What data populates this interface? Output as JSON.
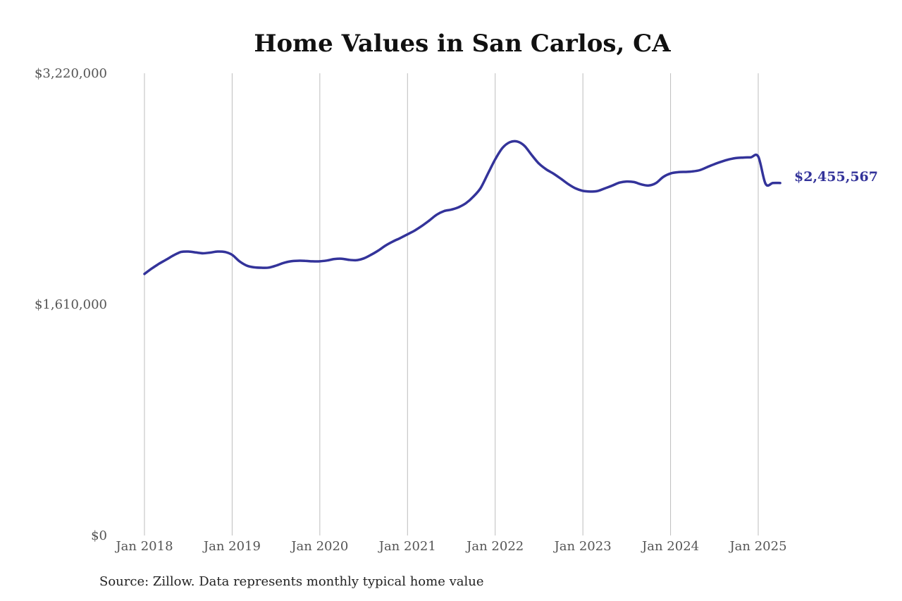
{
  "chart_data": {
    "type": "line",
    "title": "Home Values in San Carlos, CA",
    "xlabel": "",
    "ylabel": "",
    "ylim": [
      0,
      3220000
    ],
    "y_tick_values": [
      0,
      1610000,
      3220000
    ],
    "y_tick_labels": [
      "$0",
      "$1,610,000",
      "$3,220,000"
    ],
    "x_tick_values": [
      "2018-01",
      "2019-01",
      "2020-01",
      "2021-01",
      "2022-01",
      "2023-01",
      "2024-01",
      "2025-01"
    ],
    "x_tick_labels": [
      "Jan 2018",
      "Jan 2019",
      "Jan 2020",
      "Jan 2021",
      "Jan 2022",
      "Jan 2023",
      "Jan 2024",
      "Jan 2025"
    ],
    "grid": "vertical",
    "line_color": "#33339a",
    "series": [
      {
        "x": [
          "2018-01",
          "2018-02",
          "2018-03",
          "2018-04",
          "2018-05",
          "2018-06",
          "2018-07",
          "2018-08",
          "2018-09",
          "2018-10",
          "2018-11",
          "2018-12",
          "2019-01",
          "2019-02",
          "2019-03",
          "2019-04",
          "2019-05",
          "2019-06",
          "2019-07",
          "2019-08",
          "2019-09",
          "2019-10",
          "2019-11",
          "2019-12",
          "2020-01",
          "2020-02",
          "2020-03",
          "2020-04",
          "2020-05",
          "2020-06",
          "2020-07",
          "2020-08",
          "2020-09",
          "2020-10",
          "2020-11",
          "2020-12",
          "2021-01",
          "2021-02",
          "2021-03",
          "2021-04",
          "2021-05",
          "2021-06",
          "2021-07",
          "2021-08",
          "2021-09",
          "2021-10",
          "2021-11",
          "2021-12",
          "2022-01",
          "2022-02",
          "2022-03",
          "2022-04",
          "2022-05",
          "2022-06",
          "2022-07",
          "2022-08",
          "2022-09",
          "2022-10",
          "2022-11",
          "2022-12",
          "2023-01",
          "2023-02",
          "2023-03",
          "2023-04",
          "2023-05",
          "2023-06",
          "2023-07",
          "2023-08",
          "2023-09",
          "2023-10",
          "2023-11",
          "2023-12",
          "2024-01",
          "2024-02",
          "2024-03",
          "2024-04",
          "2024-05",
          "2024-06",
          "2024-07",
          "2024-08",
          "2024-09",
          "2024-10",
          "2024-11",
          "2024-12",
          "2025-01",
          "2025-02",
          "2025-03",
          "2025-04"
        ],
        "values": [
          1822000,
          1860000,
          1893000,
          1922000,
          1952000,
          1975000,
          1978000,
          1972000,
          1966000,
          1971000,
          1978000,
          1975000,
          1955000,
          1910000,
          1880000,
          1868000,
          1865000,
          1866000,
          1880000,
          1898000,
          1910000,
          1914000,
          1913000,
          1910000,
          1910000,
          1916000,
          1926000,
          1928000,
          1920000,
          1918000,
          1930000,
          1955000,
          1985000,
          2020000,
          2048000,
          2072000,
          2098000,
          2125000,
          2158000,
          2195000,
          2235000,
          2260000,
          2270000,
          2287000,
          2315000,
          2360000,
          2420000,
          2520000,
          2620000,
          2700000,
          2740000,
          2745000,
          2715000,
          2650000,
          2590000,
          2550000,
          2520000,
          2485000,
          2448000,
          2418000,
          2401000,
          2396000,
          2400000,
          2418000,
          2437000,
          2458000,
          2466000,
          2462000,
          2446000,
          2438000,
          2455000,
          2498000,
          2522000,
          2531000,
          2533000,
          2536000,
          2545000,
          2566000,
          2587000,
          2605000,
          2620000,
          2630000,
          2633000,
          2635000,
          2640000,
          2450000,
          2455567,
          2455567
        ]
      }
    ],
    "end_label": "$2,455,567"
  },
  "footer": {
    "source": "Source: Zillow. Data represents monthly typical home value"
  }
}
